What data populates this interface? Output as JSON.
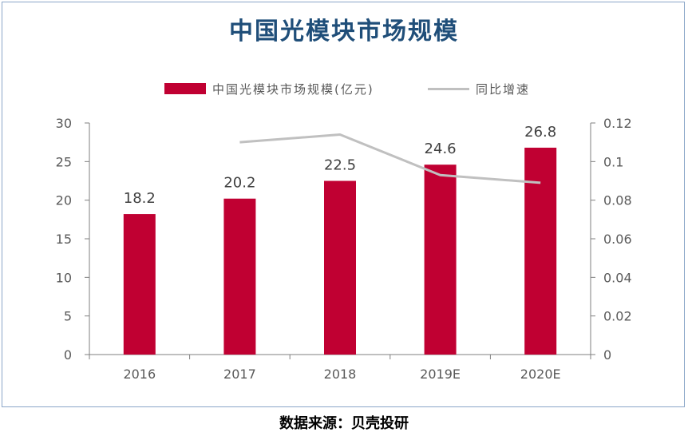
{
  "colors": {
    "bar": "#c00032",
    "line": "#c0c0c0",
    "title": "#1f4e79",
    "axis": "#595959"
  },
  "chart_data": {
    "type": "bar",
    "title": "中国光模块市场规模",
    "categories": [
      "2016",
      "2017",
      "2018",
      "2019E",
      "2020E"
    ],
    "series": [
      {
        "name": "中国光模块市场规模(亿元)",
        "type": "bar",
        "axis": "left",
        "values": [
          18.2,
          20.2,
          22.5,
          24.6,
          26.8
        ],
        "data_labels": [
          "18.2",
          "20.2",
          "22.5",
          "24.6",
          "26.8"
        ]
      },
      {
        "name": "同比增速",
        "type": "line",
        "axis": "right",
        "values": [
          null,
          0.11,
          0.114,
          0.093,
          0.089
        ]
      }
    ],
    "y_left": {
      "min": 0,
      "max": 30,
      "ticks": [
        "0",
        "5",
        "10",
        "15",
        "20",
        "25",
        "30"
      ]
    },
    "y_right": {
      "min": 0,
      "max": 0.12,
      "ticks": [
        "0",
        "0.02",
        "0.04",
        "0.06",
        "0.08",
        "0.1",
        "0.12"
      ]
    },
    "legend_position": "top",
    "grid": false
  },
  "source": "数据来源：贝壳投研"
}
